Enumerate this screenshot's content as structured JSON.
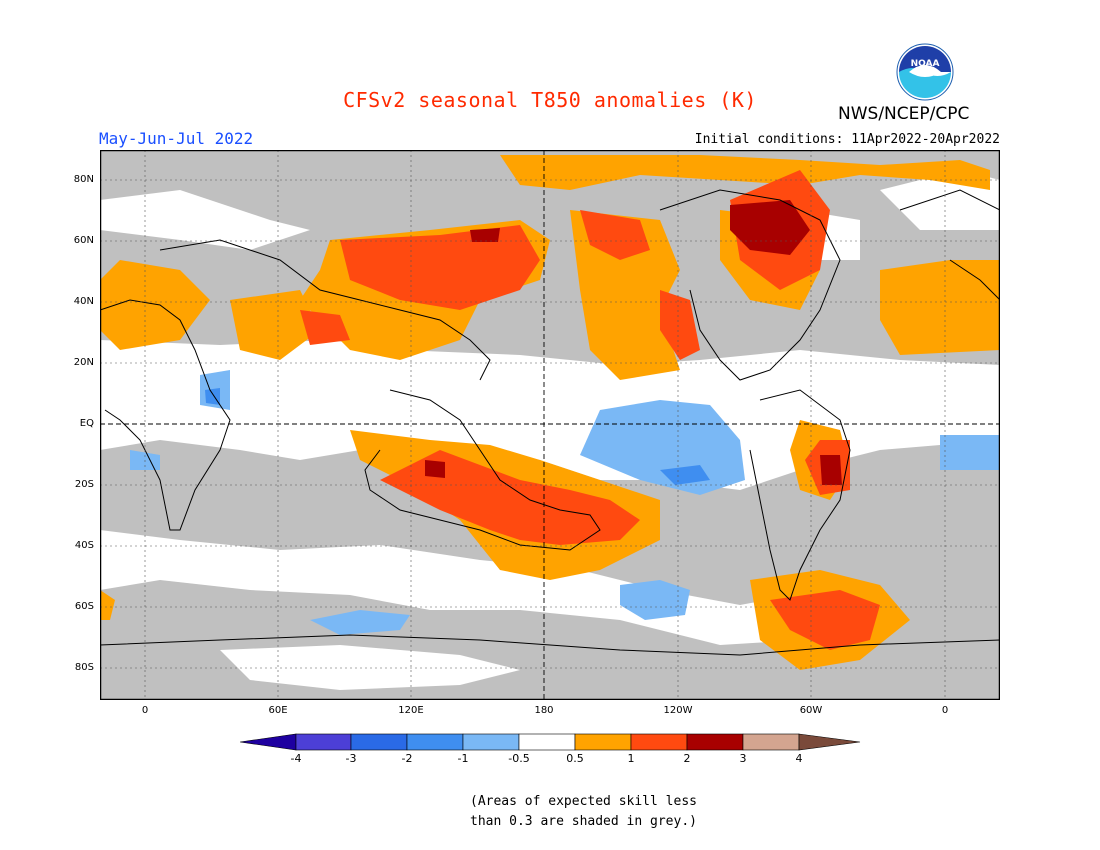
{
  "header": {
    "title": "CFSv2 seasonal T850 anomalies (K)",
    "agency": "NWS/NCEP/CPC",
    "logo_text": "NOAA",
    "period": "May-Jun-Jul 2022",
    "initial_conditions": "Initial conditions: 11Apr2022-20Apr2022"
  },
  "axes": {
    "lat_labels": [
      "80N",
      "60N",
      "40N",
      "20N",
      "EQ",
      "20S",
      "40S",
      "60S",
      "80S"
    ],
    "lon_labels": [
      "0",
      "60E",
      "120E",
      "180",
      "120W",
      "60W",
      "0"
    ]
  },
  "legend": {
    "labels": [
      "-4",
      "-3",
      "-2",
      "-1",
      "-0.5",
      "0.5",
      "1",
      "2",
      "3",
      "4"
    ],
    "colors": [
      "#1e00a0",
      "#4c3fd6",
      "#2a6ae6",
      "#3f8ef0",
      "#7ab8f5",
      "#ffffff",
      "#ffa300",
      "#ff4a10",
      "#a80000",
      "#d4a590",
      "#7a4a3a"
    ]
  },
  "footnote": {
    "line1": "(Areas of expected skill less",
    "line2": "than 0.3 are shaded in grey.)"
  },
  "colors": {
    "grey_low_skill": "#c0c0c0",
    "neutral": "#ffffff",
    "title": "#ff2a00",
    "period": "#1a4fff"
  }
}
